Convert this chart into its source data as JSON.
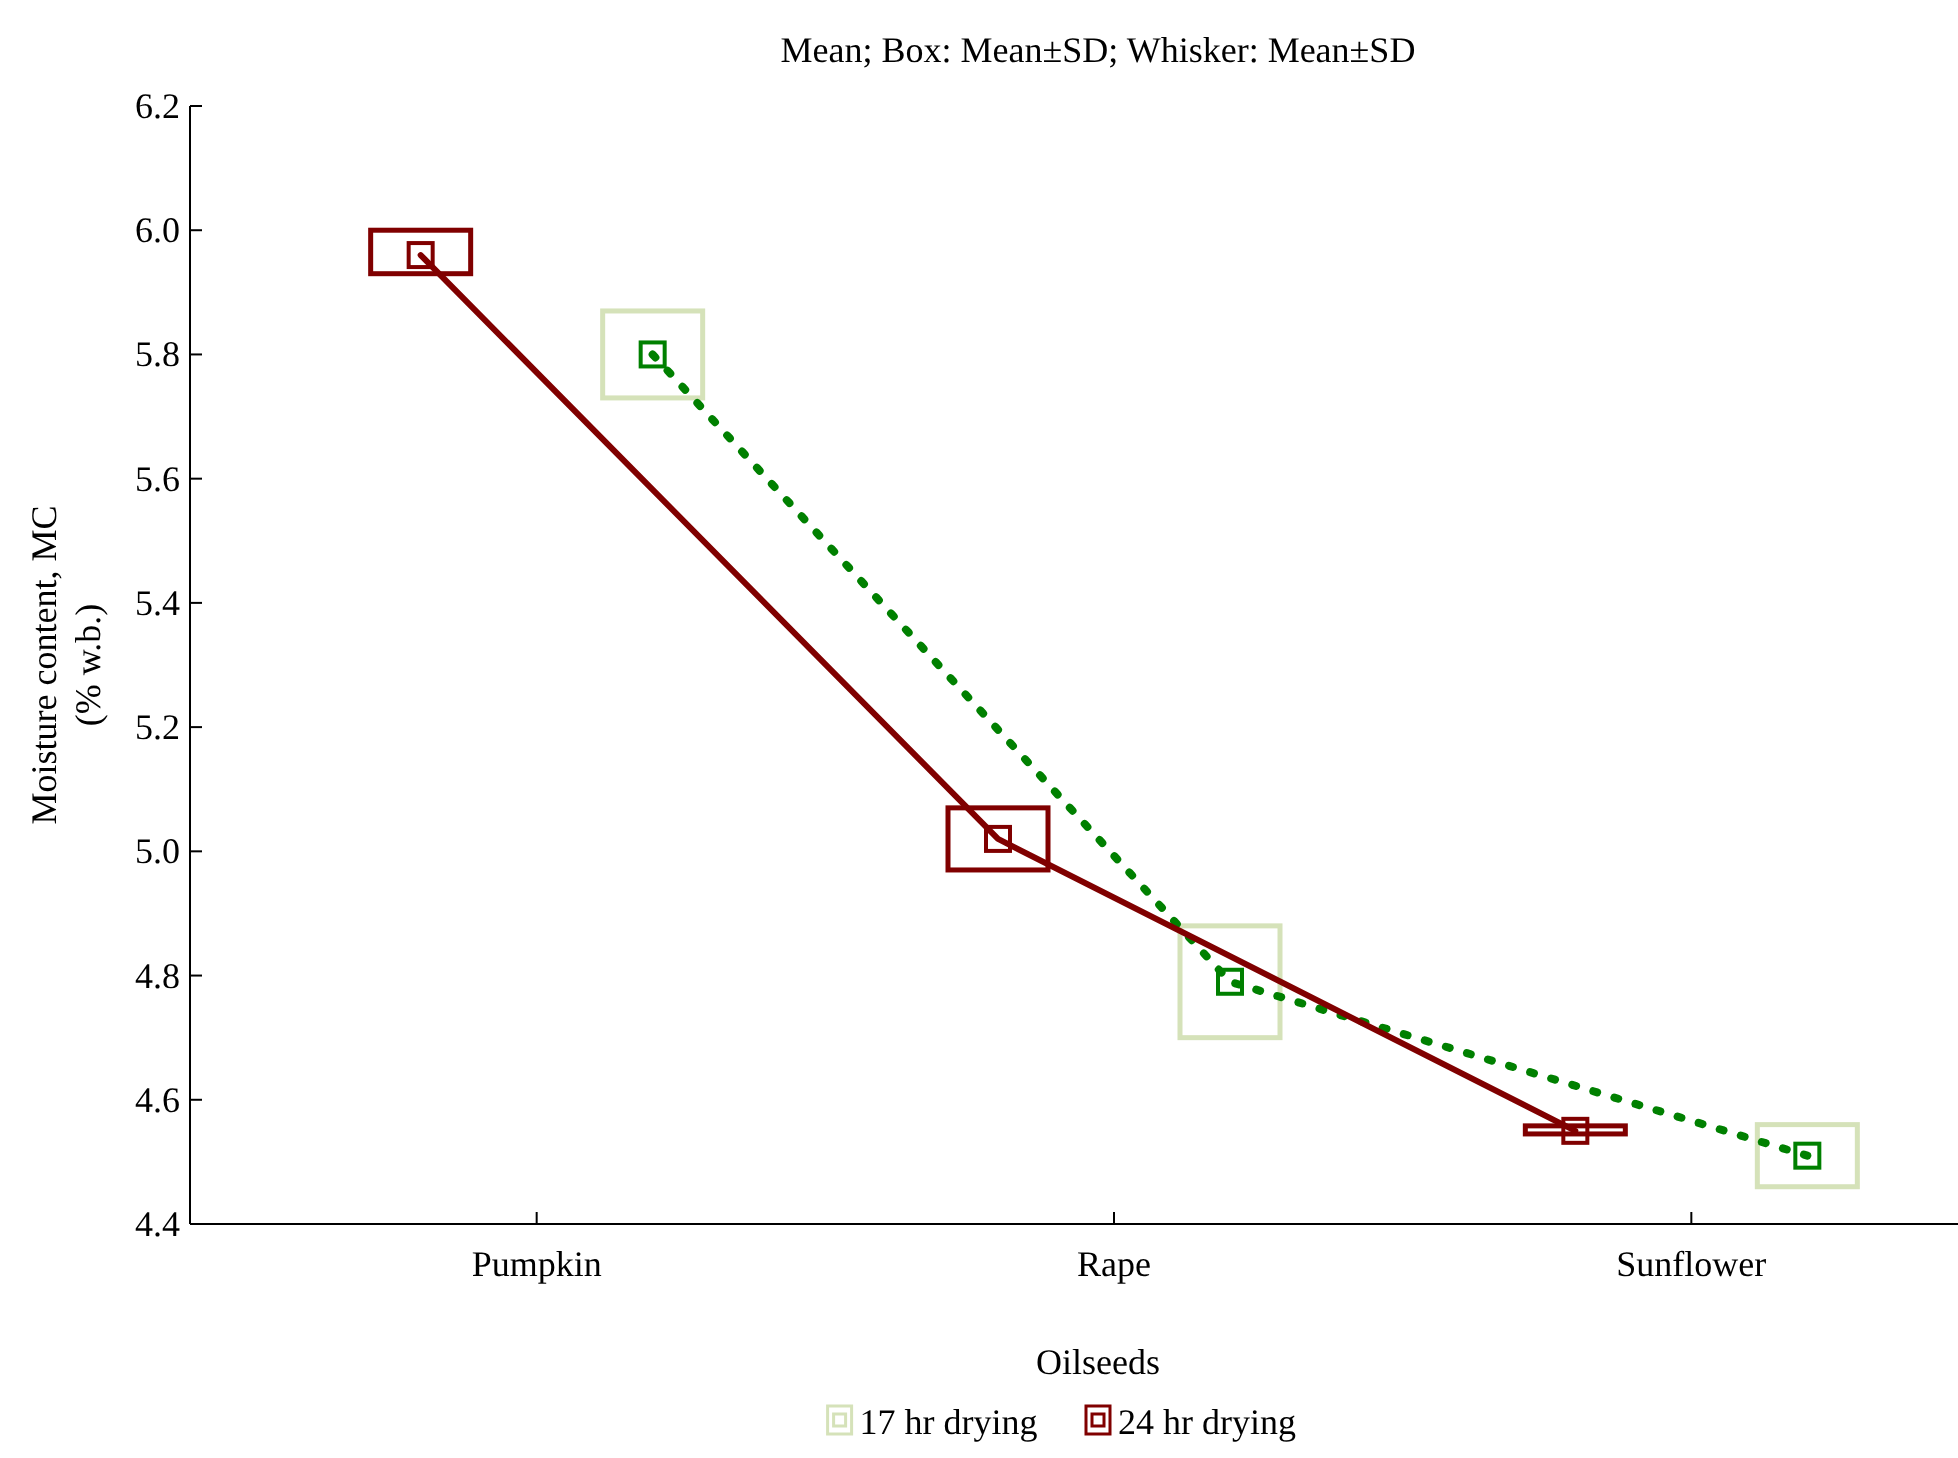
{
  "chart_data": {
    "type": "box",
    "title": "Mean; Box: Mean±SD; Whisker: Mean±SD",
    "xlabel": "Oilseeds",
    "ylabel": "Moisture content, MC\n(% w.b.)",
    "categories": [
      "Pumpkin",
      "Rape",
      "Sunflower"
    ],
    "series": [
      {
        "name": "17 hr drying",
        "type": "box",
        "color": "#d5e2b9",
        "boxes": [
          {
            "low": 5.73,
            "q1": 5.73,
            "median": 5.8,
            "q3": 5.87,
            "high": 5.87
          },
          {
            "low": 4.7,
            "q1": 4.7,
            "median": 4.79,
            "q3": 4.88,
            "high": 4.88
          },
          {
            "low": 4.46,
            "q1": 4.46,
            "median": 4.51,
            "q3": 4.56,
            "high": 4.56
          }
        ]
      },
      {
        "name": "24 hr drying",
        "type": "box",
        "color": "#800000",
        "boxes": [
          {
            "low": 5.93,
            "q1": 5.93,
            "median": 5.96,
            "q3": 6.0,
            "high": 6.0
          },
          {
            "low": 4.97,
            "q1": 4.97,
            "median": 5.02,
            "q3": 5.07,
            "high": 5.07
          },
          {
            "low": 4.545,
            "q1": 4.545,
            "median": 4.55,
            "q3": 4.558,
            "high": 4.558
          }
        ]
      },
      {
        "type": "line",
        "color": "#008000",
        "line_style": "dotted",
        "values": [
          5.8,
          4.79,
          4.51
        ]
      },
      {
        "type": "line",
        "color": "#800000",
        "line_style": "solid",
        "values": [
          5.96,
          5.02,
          4.55
        ]
      }
    ],
    "ylim": [
      4.4,
      6.2
    ],
    "yticks": [
      {
        "value": 4.4,
        "label": "4.4"
      },
      {
        "value": 4.6,
        "label": "4.6"
      },
      {
        "value": 4.8,
        "label": "4.8"
      },
      {
        "value": 5.0,
        "label": "5.0"
      },
      {
        "value": 5.2,
        "label": "5.2"
      },
      {
        "value": 5.4,
        "label": "5.4"
      },
      {
        "value": 5.6,
        "label": "5.6"
      },
      {
        "value": 5.8,
        "label": "5.8"
      },
      {
        "value": 6.0,
        "label": "6.0"
      },
      {
        "value": 6.2,
        "label": "6.2"
      }
    ],
    "legend": "bottom",
    "grid": false
  }
}
